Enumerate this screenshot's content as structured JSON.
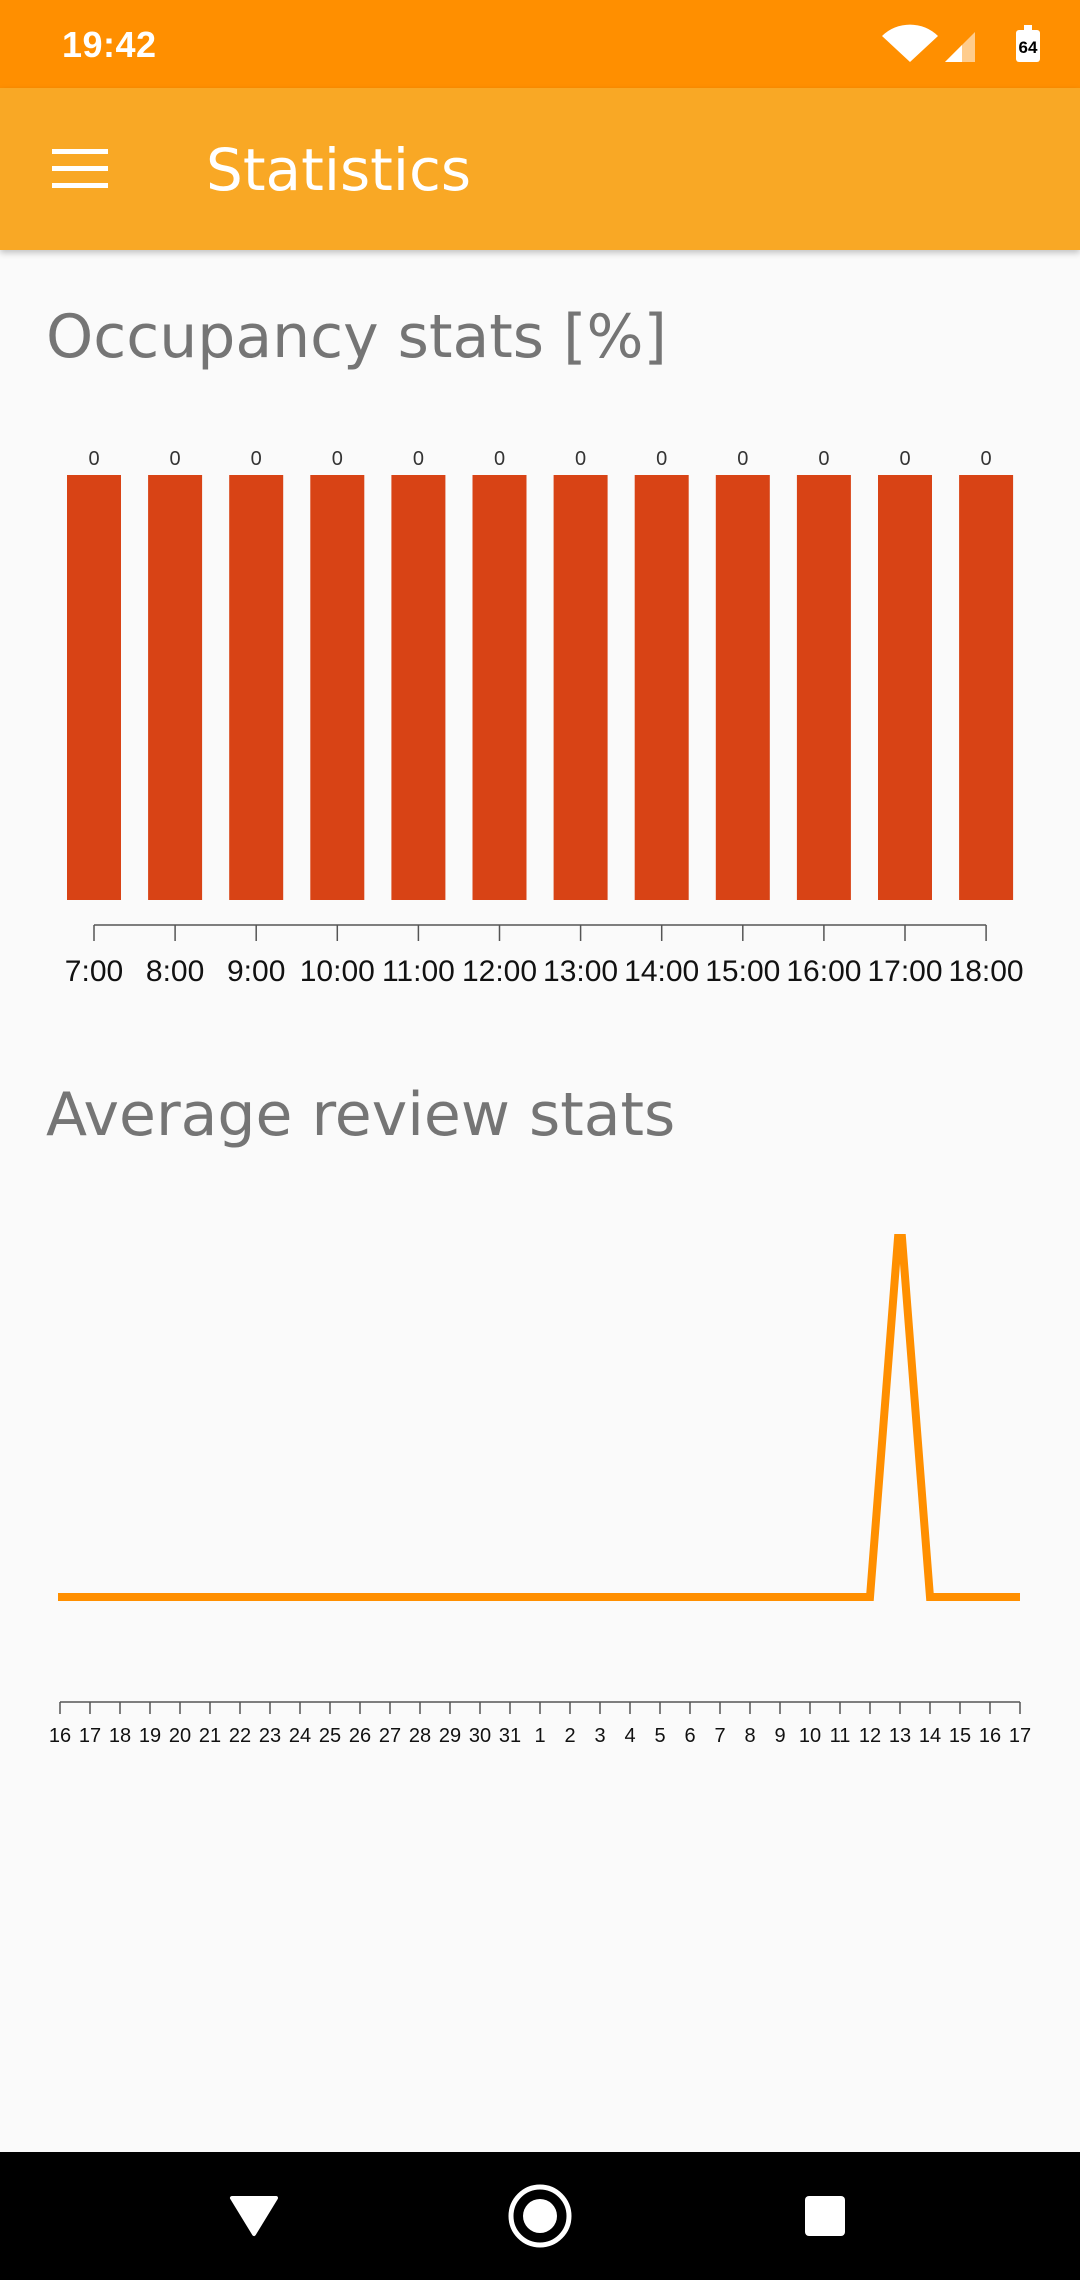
{
  "status_bar": {
    "time": "19:42",
    "battery_level": "64"
  },
  "app_bar": {
    "title": "Statistics",
    "menu_icon": "hamburger-menu-icon"
  },
  "sections": {
    "occupancy_title": "Occupancy stats [%]",
    "review_title": "Average review stats"
  },
  "colors": {
    "status_bar": "#ff8f00",
    "app_bar": "#f9a825",
    "bar": "#d84315",
    "line": "#ff8f00"
  },
  "chart_data": [
    {
      "type": "bar",
      "title": "Occupancy stats [%]",
      "categories": [
        "7:00",
        "8:00",
        "9:00",
        "10:00",
        "11:00",
        "12:00",
        "13:00",
        "14:00",
        "15:00",
        "16:00",
        "17:00",
        "18:00"
      ],
      "values": [
        0,
        0,
        0,
        0,
        0,
        0,
        0,
        0,
        0,
        0,
        0,
        0
      ],
      "data_labels": [
        "0",
        "0",
        "0",
        "0",
        "0",
        "0",
        "0",
        "0",
        "0",
        "0",
        "0",
        "0"
      ],
      "grid": false,
      "legend": "none"
    },
    {
      "type": "line",
      "title": "Average review stats",
      "x": [
        "16",
        "17",
        "18",
        "19",
        "20",
        "21",
        "22",
        "23",
        "24",
        "25",
        "26",
        "27",
        "28",
        "29",
        "30",
        "31",
        "1",
        "2",
        "3",
        "4",
        "5",
        "6",
        "7",
        "8",
        "9",
        "10",
        "11",
        "12",
        "13",
        "14",
        "15",
        "16",
        "17"
      ],
      "values": [
        0,
        0,
        0,
        0,
        0,
        0,
        0,
        0,
        0,
        0,
        0,
        0,
        0,
        0,
        0,
        0,
        0,
        0,
        0,
        0,
        0,
        0,
        0,
        0,
        0,
        0,
        0,
        0,
        1,
        0,
        0,
        0,
        0
      ],
      "grid": false,
      "legend": "none"
    }
  ],
  "nav_bar": {
    "back": "back-triangle-icon",
    "home": "home-circle-icon",
    "recents": "recents-square-icon"
  }
}
